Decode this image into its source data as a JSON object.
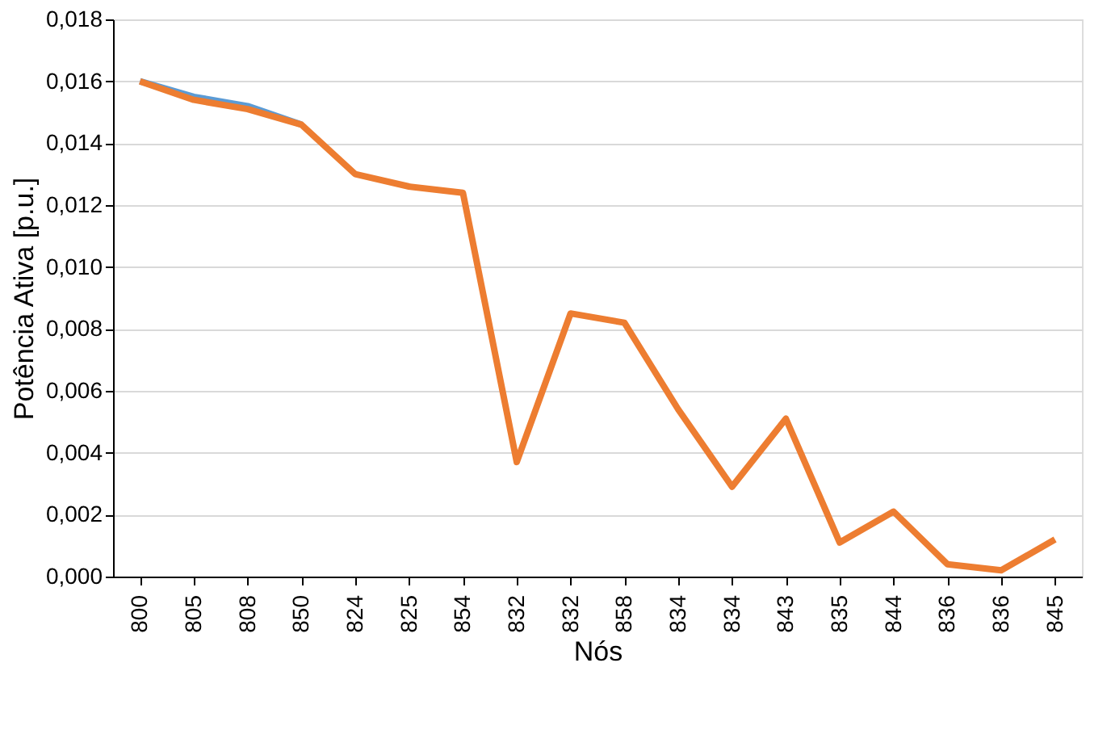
{
  "chart_data": {
    "type": "line",
    "xlabel": "Nós",
    "ylabel": "Potência Ativa [p.u.]",
    "categories": [
      "800",
      "805",
      "808",
      "850",
      "824",
      "825",
      "854",
      "832",
      "832",
      "858",
      "834",
      "834",
      "843",
      "835",
      "844",
      "836",
      "836",
      "845"
    ],
    "series": [
      {
        "color": "#5b9bd5",
        "values": [
          0.016,
          0.0155,
          0.0152,
          0.0146,
          null,
          null,
          null,
          null,
          null,
          null,
          null,
          null,
          null,
          null,
          null,
          null,
          null,
          null
        ]
      },
      {
        "color": "#ed7d31",
        "values": [
          0.016,
          0.0154,
          0.0151,
          0.0146,
          0.013,
          0.0126,
          0.0124,
          0.0037,
          0.0085,
          0.0082,
          0.0054,
          0.0029,
          0.0051,
          0.0011,
          0.0021,
          0.0004,
          0.0002,
          0.0012
        ]
      }
    ],
    "ylim": [
      0,
      0.018
    ],
    "yticks": [
      {
        "value": 0,
        "label": "0,000"
      },
      {
        "value": 0.002,
        "label": "0,002"
      },
      {
        "value": 0.004,
        "label": "0,004"
      },
      {
        "value": 0.006,
        "label": "0,006"
      },
      {
        "value": 0.008,
        "label": "0,008"
      },
      {
        "value": 0.01,
        "label": "0,010"
      },
      {
        "value": 0.012,
        "label": "0,012"
      },
      {
        "value": 0.014,
        "label": "0,014"
      },
      {
        "value": 0.016,
        "label": "0,016"
      },
      {
        "value": 0.018,
        "label": "0,018"
      }
    ],
    "grid": "y",
    "marker": "none",
    "line_style": "solid"
  }
}
